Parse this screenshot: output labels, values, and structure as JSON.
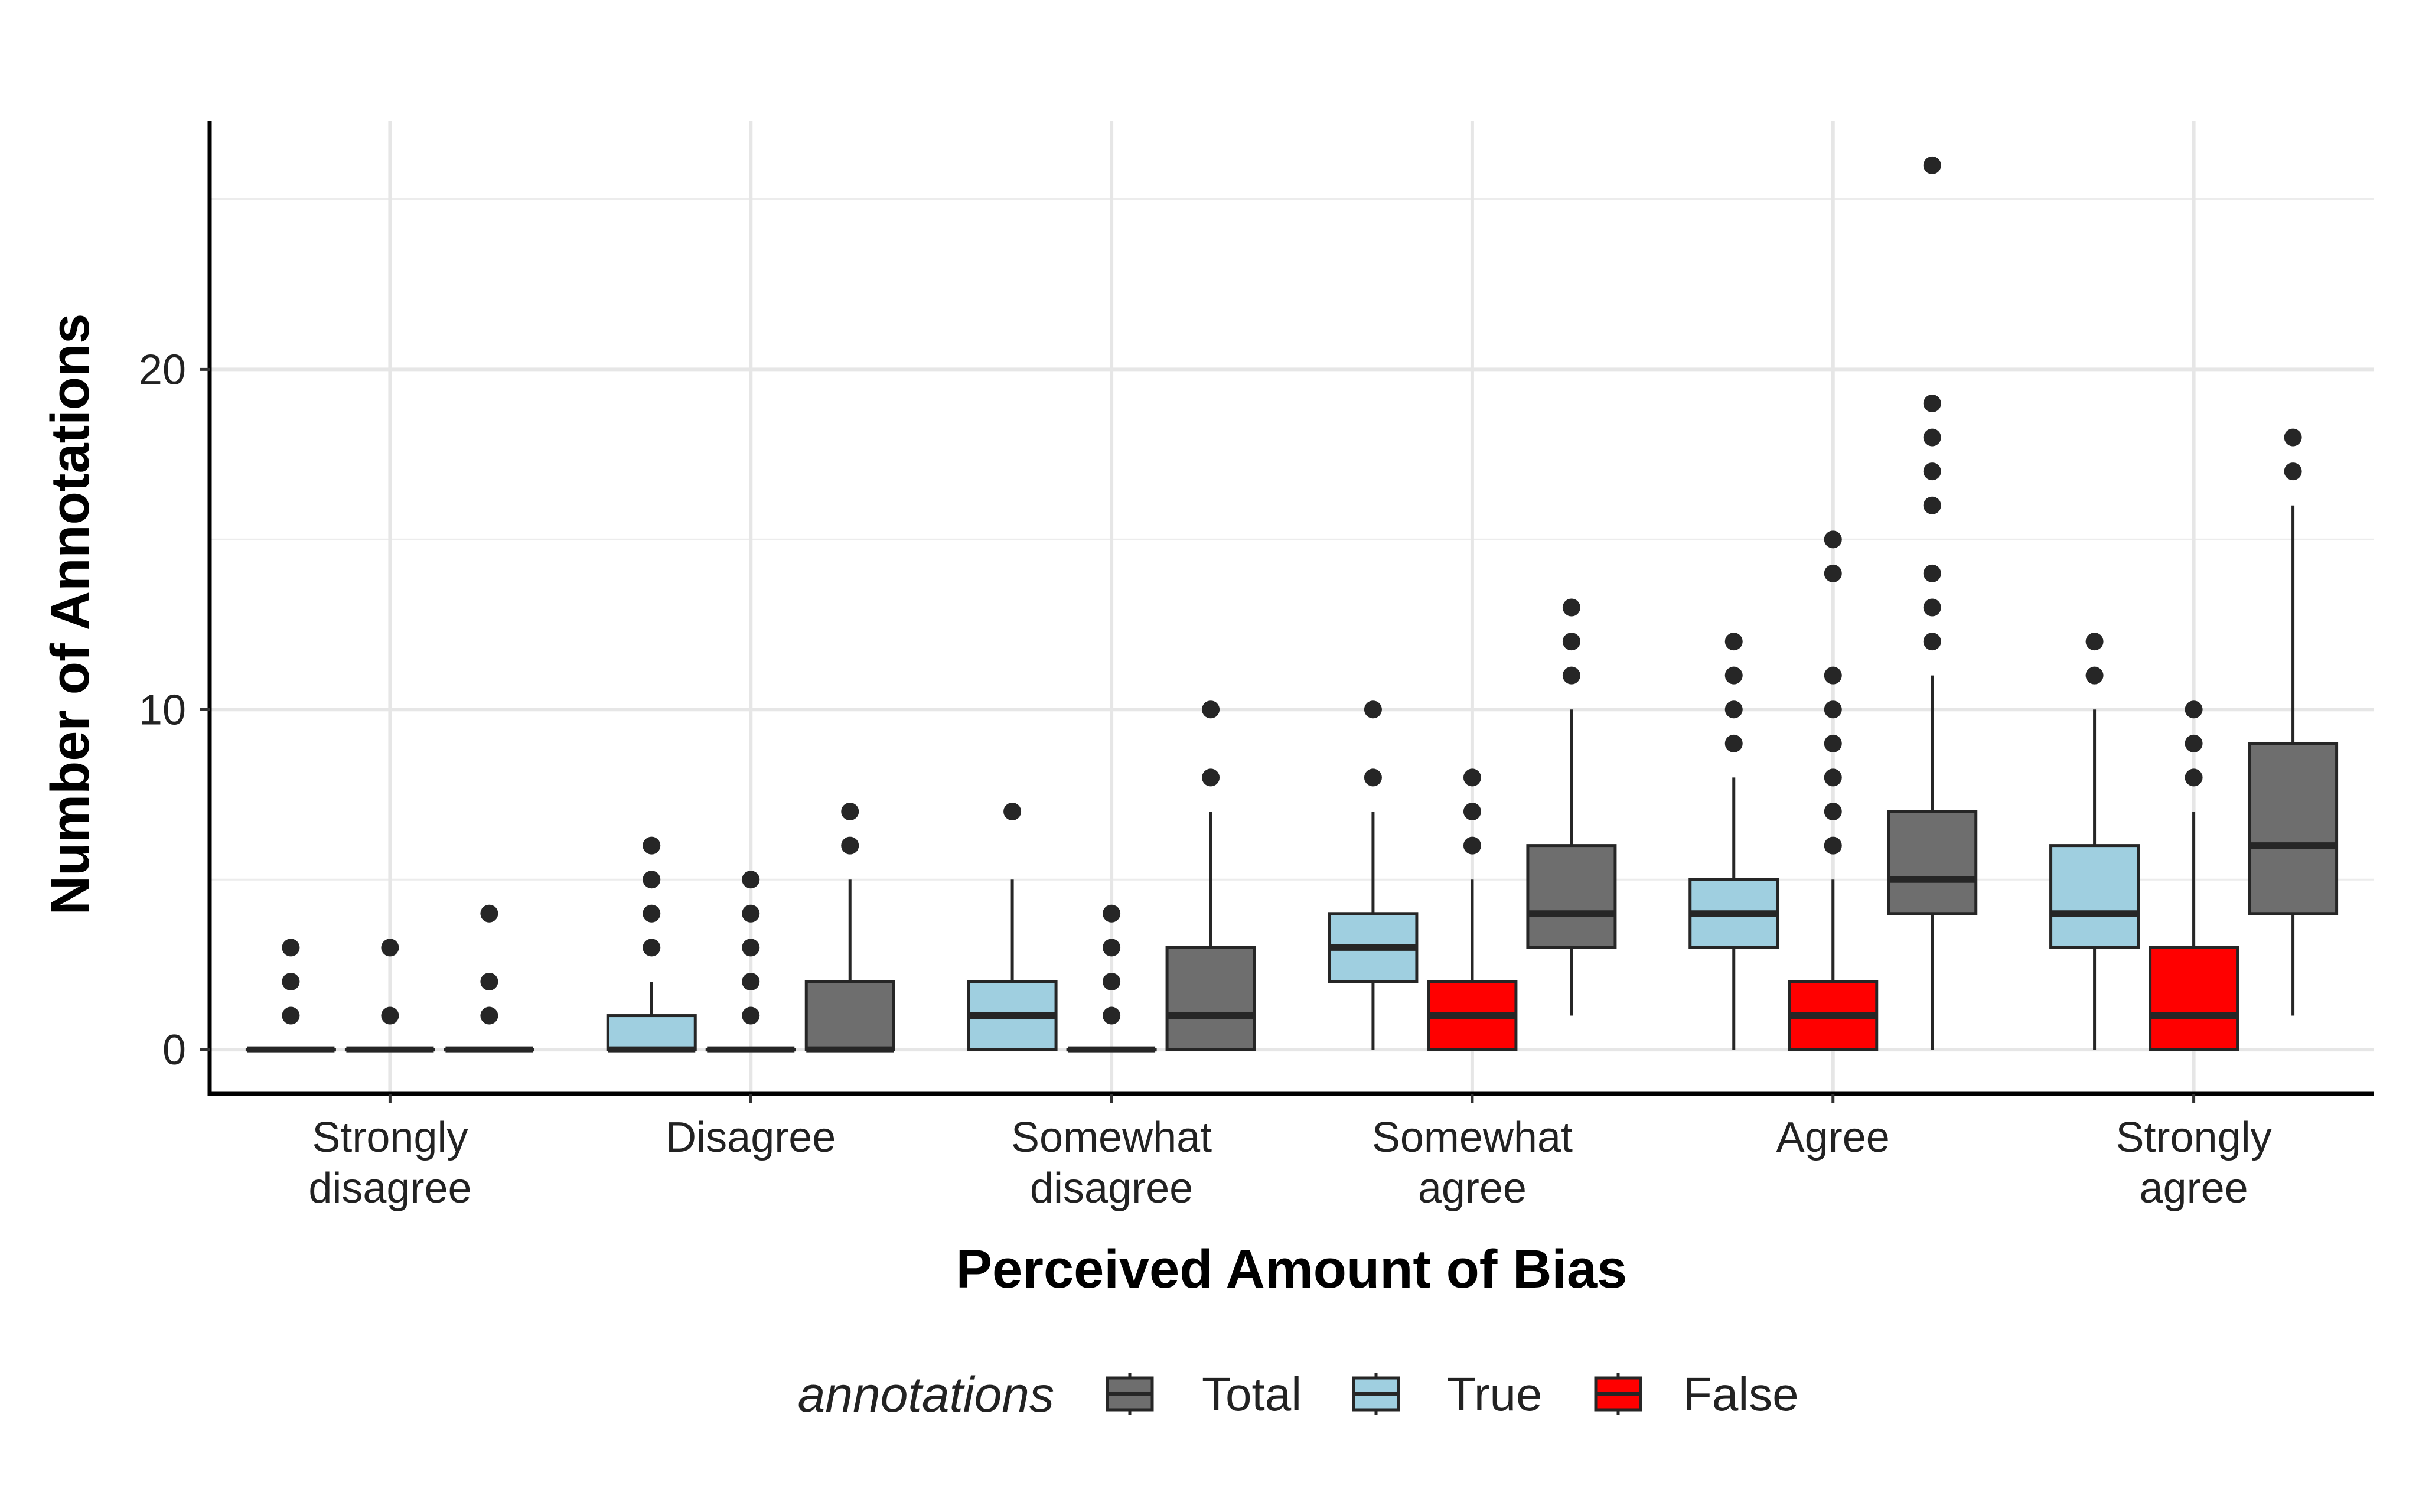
{
  "chart_data": {
    "type": "boxplot",
    "xlabel": "Perceived Amount of Bias",
    "ylabel": "Number of Annotations",
    "ylim": [
      -1.3,
      27.3
    ],
    "y_ticks": [
      0,
      10,
      20
    ],
    "grid": true,
    "legend_position": "bottom",
    "legend_title": "annotations",
    "legend_order": [
      "Total",
      "True",
      "False"
    ],
    "colors": {
      "Total": "#6e6e6e",
      "True": "#9fcfe0",
      "False": "#ff0000"
    },
    "series_order": [
      "True",
      "False",
      "Total"
    ],
    "categories": [
      {
        "label": [
          "Strongly",
          "disagree"
        ],
        "boxes": {
          "True": {
            "q1": 0,
            "median": 0,
            "q3": 0,
            "whisker_low": 0,
            "whisker_high": 0,
            "outliers": [
              1,
              2,
              3
            ]
          },
          "False": {
            "q1": 0,
            "median": 0,
            "q3": 0,
            "whisker_low": 0,
            "whisker_high": 0,
            "outliers": [
              1,
              3
            ]
          },
          "Total": {
            "q1": 0,
            "median": 0,
            "q3": 0,
            "whisker_low": 0,
            "whisker_high": 0,
            "outliers": [
              1,
              2,
              4
            ]
          }
        }
      },
      {
        "label": [
          "Disagree"
        ],
        "boxes": {
          "True": {
            "q1": 0,
            "median": 0,
            "q3": 1,
            "whisker_low": 0,
            "whisker_high": 2,
            "outliers": [
              3,
              4,
              5,
              6
            ]
          },
          "False": {
            "q1": 0,
            "median": 0,
            "q3": 0,
            "whisker_low": 0,
            "whisker_high": 0,
            "outliers": [
              1,
              2,
              3,
              4,
              5
            ]
          },
          "Total": {
            "q1": 0,
            "median": 0,
            "q3": 2,
            "whisker_low": 0,
            "whisker_high": 5,
            "outliers": [
              6,
              7
            ]
          }
        }
      },
      {
        "label": [
          "Somewhat",
          "disagree"
        ],
        "boxes": {
          "True": {
            "q1": 0,
            "median": 1,
            "q3": 2,
            "whisker_low": 0,
            "whisker_high": 5,
            "outliers": [
              7
            ]
          },
          "False": {
            "q1": 0,
            "median": 0,
            "q3": 0,
            "whisker_low": 0,
            "whisker_high": 0,
            "outliers": [
              1,
              2,
              3,
              4
            ]
          },
          "Total": {
            "q1": 0,
            "median": 1,
            "q3": 3,
            "whisker_low": 0,
            "whisker_high": 7,
            "outliers": [
              8,
              10
            ]
          }
        }
      },
      {
        "label": [
          "Somewhat",
          "agree"
        ],
        "boxes": {
          "True": {
            "q1": 2,
            "median": 3,
            "q3": 4,
            "whisker_low": 0,
            "whisker_high": 7,
            "outliers": [
              8,
              10
            ]
          },
          "False": {
            "q1": 0,
            "median": 1,
            "q3": 2,
            "whisker_low": 0,
            "whisker_high": 5,
            "outliers": [
              6,
              7,
              8
            ]
          },
          "Total": {
            "q1": 3,
            "median": 4,
            "q3": 6,
            "whisker_low": 1,
            "whisker_high": 10,
            "outliers": [
              11,
              12,
              13
            ]
          }
        }
      },
      {
        "label": [
          "Agree"
        ],
        "boxes": {
          "True": {
            "q1": 3,
            "median": 4,
            "q3": 5,
            "whisker_low": 0,
            "whisker_high": 8,
            "outliers": [
              9,
              10,
              11,
              12
            ]
          },
          "False": {
            "q1": 0,
            "median": 1,
            "q3": 2,
            "whisker_low": 0,
            "whisker_high": 5,
            "outliers": [
              6,
              7,
              8,
              9,
              10,
              11,
              14,
              15
            ]
          },
          "Total": {
            "q1": 4,
            "median": 5,
            "q3": 7,
            "whisker_low": 0,
            "whisker_high": 11,
            "outliers": [
              12,
              13,
              14,
              16,
              17,
              18,
              19,
              26
            ]
          }
        }
      },
      {
        "label": [
          "Strongly",
          "agree"
        ],
        "boxes": {
          "True": {
            "q1": 3,
            "median": 4,
            "q3": 6,
            "whisker_low": 0,
            "whisker_high": 10,
            "outliers": [
              11,
              12
            ]
          },
          "False": {
            "q1": 0,
            "median": 1,
            "q3": 3,
            "whisker_low": 0,
            "whisker_high": 7,
            "outliers": [
              8,
              9,
              10
            ]
          },
          "Total": {
            "q1": 4,
            "median": 6,
            "q3": 9,
            "whisker_low": 1,
            "whisker_high": 16,
            "outliers": [
              17,
              18
            ]
          }
        }
      }
    ]
  }
}
